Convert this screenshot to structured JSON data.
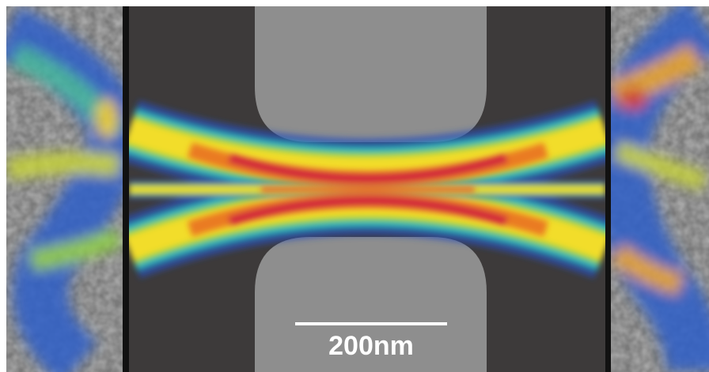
{
  "scale_bar": {
    "label": "200nm"
  }
}
